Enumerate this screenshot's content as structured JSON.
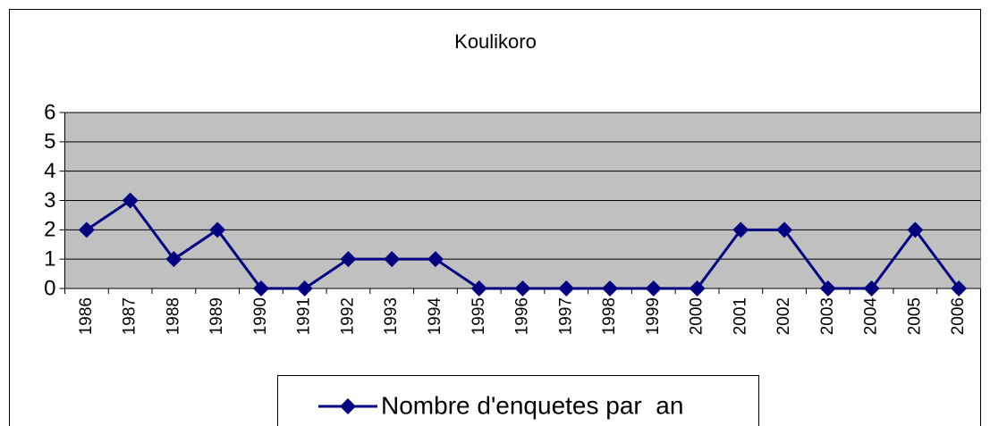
{
  "chart_data": {
    "type": "line",
    "title": "Koulikoro",
    "categories": [
      "1986",
      "1987",
      "1988",
      "1989",
      "1990",
      "1991",
      "1992",
      "1993",
      "1994",
      "1995",
      "1996",
      "1997",
      "1998",
      "1999",
      "2000",
      "2001",
      "2002",
      "2003",
      "2004",
      "2005",
      "2006"
    ],
    "series": [
      {
        "name": "Nombre d'enquetes par  an",
        "color": "#000080",
        "values": [
          2,
          3,
          1,
          2,
          0,
          0,
          1,
          1,
          1,
          0,
          0,
          0,
          0,
          0,
          0,
          2,
          2,
          0,
          0,
          2,
          0
        ]
      }
    ],
    "ylim": [
      0,
      6
    ],
    "yticks": [
      0,
      1,
      2,
      3,
      4,
      5,
      6
    ],
    "grid": true,
    "plot_background": "#c0c0c0",
    "legend": "bottom"
  }
}
